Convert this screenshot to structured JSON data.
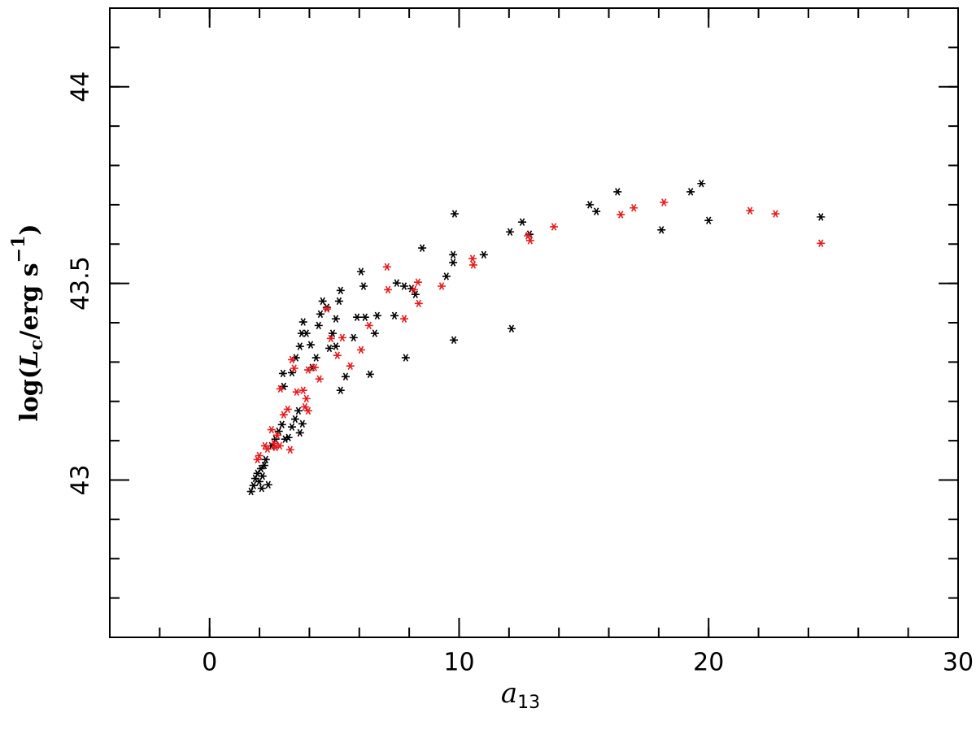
{
  "chart_data": {
    "type": "scatter",
    "xlabel": [
      "a",
      "13"
    ],
    "ylabel": [
      "log(",
      "L",
      "c",
      "/erg s",
      "−1",
      ")"
    ],
    "xlim": [
      -4,
      30
    ],
    "ylim": [
      42.6,
      44.2
    ],
    "xticks": [
      0,
      10,
      20,
      30
    ],
    "yticks": [
      43,
      43.5,
      44
    ],
    "series": [
      {
        "color": "#000000",
        "x": [
          1.66,
          1.76,
          1.83,
          1.92,
          1.99,
          2.06,
          2.12,
          2.19,
          2.25,
          2.09,
          2.35,
          2.48,
          2.64,
          2.77,
          2.9,
          3.03,
          3.16,
          3.3,
          3.43,
          3.56,
          3.62,
          3.72,
          2.94,
          2.97,
          3.3,
          3.46,
          3.62,
          3.69,
          3.75,
          3.88,
          4.05,
          4.11,
          4.27,
          4.37,
          4.44,
          4.53,
          4.7,
          4.8,
          4.93,
          5.06,
          5.19,
          5.25,
          5.06,
          5.25,
          5.45,
          5.77,
          5.91,
          6.07,
          6.17,
          6.23,
          6.43,
          6.62,
          6.72,
          7.41,
          7.5,
          7.8,
          7.86,
          8.09,
          8.25,
          8.52,
          9.49,
          9.76,
          9.76,
          9.82,
          9.79,
          10.99,
          12.04,
          12.1,
          12.53,
          12.82,
          15.24,
          15.5,
          16.35,
          18.11,
          19.28,
          19.71,
          20.0,
          24.5
        ],
        "y": [
          42.971,
          42.986,
          43.004,
          43.017,
          42.996,
          43.029,
          43.01,
          43.037,
          43.052,
          42.979,
          42.988,
          43.087,
          43.104,
          43.124,
          43.141,
          43.104,
          43.108,
          43.135,
          43.155,
          43.176,
          43.12,
          43.143,
          43.271,
          43.238,
          43.273,
          43.311,
          43.34,
          43.373,
          43.402,
          43.373,
          43.344,
          43.286,
          43.311,
          43.393,
          43.422,
          43.455,
          43.439,
          43.335,
          43.373,
          43.41,
          43.455,
          43.482,
          43.34,
          43.228,
          43.263,
          43.362,
          43.414,
          43.53,
          43.493,
          43.414,
          43.269,
          43.373,
          43.418,
          43.418,
          43.501,
          43.493,
          43.311,
          43.487,
          43.472,
          43.59,
          43.518,
          43.553,
          43.573,
          43.677,
          43.356,
          43.573,
          43.631,
          43.385,
          43.656,
          43.625,
          43.7,
          43.683,
          43.733,
          43.636,
          43.733,
          43.754,
          43.66,
          43.669
        ]
      },
      {
        "color": "#e8191b",
        "x": [
          1.92,
          1.99,
          2.22,
          2.32,
          2.48,
          2.58,
          2.71,
          2.64,
          2.81,
          2.84,
          2.97,
          3.13,
          3.23,
          3.3,
          3.39,
          3.49,
          3.75,
          3.82,
          3.88,
          3.95,
          3.95,
          4.21,
          4.4,
          4.7,
          4.86,
          5.12,
          5.32,
          5.64,
          6.07,
          6.39,
          7.11,
          7.15,
          7.8,
          8.19,
          8.35,
          8.38,
          9.3,
          10.54,
          10.57,
          12.76,
          12.85,
          13.8,
          16.48,
          17.0,
          18.21,
          21.66,
          22.68,
          24.5
        ],
        "y": [
          43.052,
          43.062,
          43.087,
          43.079,
          43.128,
          43.093,
          43.114,
          43.083,
          43.087,
          43.232,
          43.166,
          43.18,
          43.077,
          43.306,
          43.284,
          43.224,
          43.228,
          43.186,
          43.207,
          43.176,
          43.28,
          43.286,
          43.257,
          43.435,
          43.36,
          43.317,
          43.362,
          43.29,
          43.331,
          43.393,
          43.542,
          43.484,
          43.41,
          43.484,
          43.503,
          43.449,
          43.493,
          43.563,
          43.547,
          43.621,
          43.609,
          43.644,
          43.675,
          43.692,
          43.706,
          43.685,
          43.677,
          43.602
        ]
      }
    ]
  }
}
